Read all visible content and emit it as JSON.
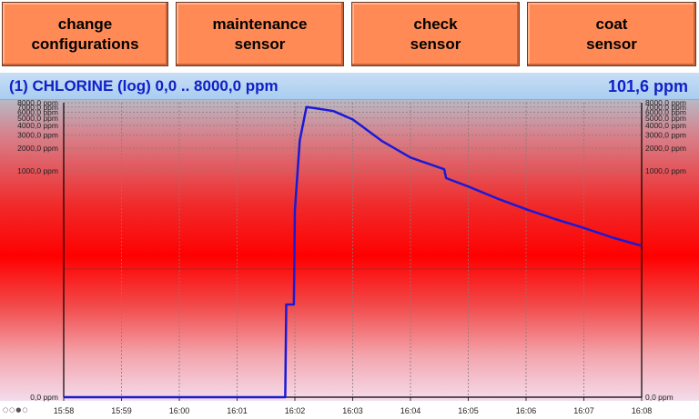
{
  "toolbar": {
    "buttons": [
      {
        "label": "change\nconfigurations"
      },
      {
        "label": "maintenance\nsensor"
      },
      {
        "label": "check\nsensor"
      },
      {
        "label": "coat\nsensor"
      }
    ]
  },
  "header": {
    "title": "(1) CHLORINE (log) 0,0 .. 8000,0 ppm",
    "current_value": "101,6 ppm"
  },
  "colors": {
    "line": "#1a1ad6",
    "accent": "#ff8a55",
    "title": "#1020c8"
  },
  "chart_data": {
    "type": "line",
    "yscale": "log",
    "ylim": [
      0,
      8000
    ],
    "y_ticks": [
      "8000,0 ppm",
      "7000,0 ppm",
      "6000,0 ppm",
      "5000,0 ppm",
      "4000,0 ppm",
      "3000,0 ppm",
      "2000,0 ppm",
      "1000,0 ppm",
      "0,0 ppm"
    ],
    "y_tick_values": [
      8000,
      7000,
      6000,
      5000,
      4000,
      3000,
      2000,
      1000,
      0
    ],
    "x_ticks": [
      "15:58",
      "15:59",
      "16:00",
      "16:01",
      "16:02",
      "16:03",
      "16:04",
      "16:05",
      "16:06",
      "16:07",
      "16:08"
    ],
    "series": [
      {
        "values": [
          [
            "15:58:00",
            0
          ],
          [
            "16:01:50",
            0
          ],
          [
            "16:01:51",
            10
          ],
          [
            "16:01:59",
            10
          ],
          [
            "16:02:00",
            300
          ],
          [
            "16:02:05",
            2500
          ],
          [
            "16:02:12",
            7000
          ],
          [
            "16:02:20",
            6800
          ],
          [
            "16:02:40",
            6200
          ],
          [
            "16:03:00",
            4800
          ],
          [
            "16:03:30",
            2500
          ],
          [
            "16:04:00",
            1500
          ],
          [
            "16:04:35",
            1050
          ],
          [
            "16:04:37",
            800
          ],
          [
            "16:05:00",
            620
          ],
          [
            "16:05:30",
            430
          ],
          [
            "16:06:00",
            310
          ],
          [
            "16:06:30",
            230
          ],
          [
            "16:07:00",
            175
          ],
          [
            "16:07:30",
            130
          ],
          [
            "16:08:00",
            101.6
          ]
        ]
      }
    ]
  }
}
